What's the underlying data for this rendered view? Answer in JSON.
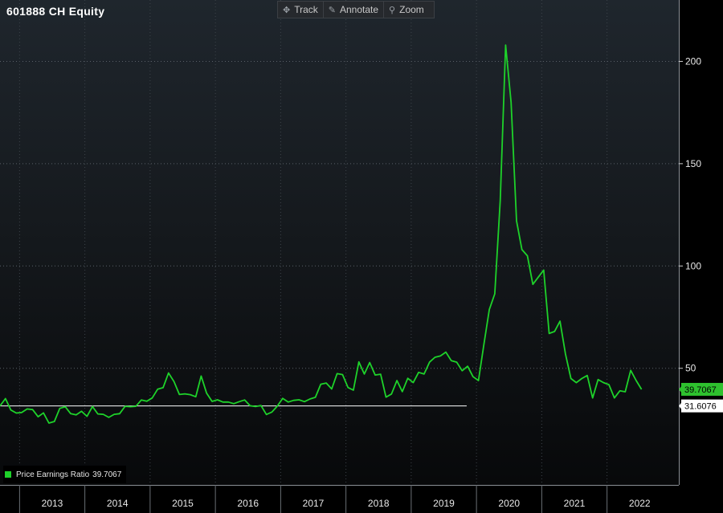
{
  "header": {
    "title": "601888 CH Equity"
  },
  "toolbar": {
    "track_label": "Track",
    "annotate_label": "Annotate",
    "zoom_label": "Zoom"
  },
  "legend": {
    "label": "Price Earnings Ratio",
    "value": "39.7067"
  },
  "colors": {
    "series": "#1ed22a",
    "reference_line": "#ffffff",
    "badge_current": "#2ec12e",
    "badge_reference": "#ffffff"
  },
  "chart_data": {
    "type": "line",
    "title": "601888 CH Equity",
    "series": [
      {
        "name": "Price Earnings Ratio",
        "x_start": 2012.2,
        "step": 0.0833,
        "values": [
          31.6,
          35.2,
          29.6,
          28.1,
          28.4,
          30.1,
          29.8,
          26.3,
          28.2,
          23.2,
          24.0,
          30.4,
          31.2,
          27.8,
          27.2,
          29.0,
          26.5,
          31.3,
          27.7,
          27.5,
          26.0,
          27.5,
          27.8,
          31.4,
          31.2,
          31.4,
          34.5,
          33.9,
          35.5,
          39.8,
          40.5,
          47.7,
          43.5,
          37.2,
          37.5,
          37.1,
          36.1,
          46.2,
          37.8,
          33.8,
          34.6,
          33.5,
          33.5,
          32.7,
          33.7,
          34.5,
          31.7,
          31.3,
          31.8,
          27.4,
          28.6,
          31.5,
          35.3,
          33.5,
          34.3,
          34.6,
          33.7,
          35.0,
          35.8,
          42.2,
          42.8,
          39.9,
          47.4,
          46.9,
          40.6,
          39.3,
          53.1,
          47.2,
          52.8,
          46.7,
          47.1,
          35.9,
          37.4,
          44.0,
          38.6,
          45.1,
          43.0,
          48.0,
          47.2,
          53.0,
          55.4,
          56.0,
          57.9,
          53.7,
          53.0,
          48.8,
          51.0,
          45.9,
          44.0,
          61.8,
          78.7,
          86.4,
          132.0,
          208.0,
          180.0,
          122.0,
          108.0,
          105.0,
          91.0,
          94.5,
          98.0,
          67.0,
          68.0,
          73.0,
          57.0,
          45.0,
          43.0,
          45.0,
          46.5,
          35.5,
          44.5,
          43.0,
          42.0,
          35.5,
          39.0,
          38.5,
          49.0,
          44.0,
          39.7
        ]
      }
    ],
    "reference_line": {
      "value": 31.6076,
      "x_start": 2012.2,
      "x_end": 2019.35
    },
    "current_value": 39.7067,
    "x_ticks": [
      2013,
      2014,
      2015,
      2016,
      2017,
      2018,
      2019,
      2020,
      2021,
      2022
    ],
    "y_ticks": [
      50,
      100,
      150,
      200
    ],
    "ylim": [
      -7,
      230
    ],
    "xlim": [
      2012.2,
      2022.6
    ],
    "badges": {
      "current": "39.7067",
      "reference": "31.6076"
    }
  }
}
